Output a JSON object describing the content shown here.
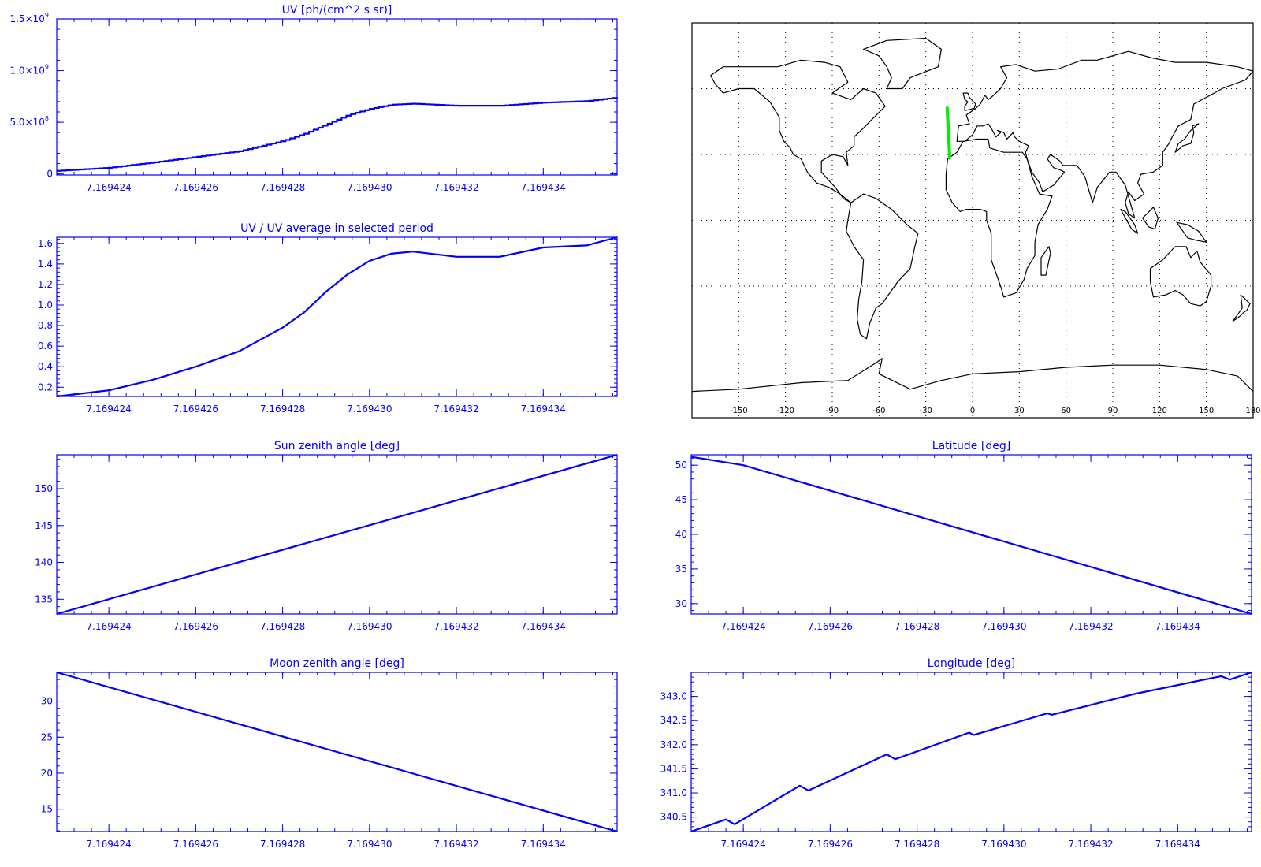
{
  "colors": {
    "axis": "#0000ff",
    "line": "#0000ff",
    "map": "#000000",
    "track": "#00ee00",
    "grid": "#000000"
  },
  "chart_data": [
    {
      "id": "uv",
      "type": "line",
      "title": "UV [ph/(cm^2 s sr)]",
      "xlabel": "",
      "ylabel": "",
      "xlim": [
        7.1694228,
        7.1694357
      ],
      "ylim": [
        -10000000,
        1500000000
      ],
      "xticks": [
        "7.169424",
        "7.169426",
        "7.169428",
        "7.169430",
        "7.169432",
        "7.169434"
      ],
      "xtick_values": [
        7.169424,
        7.169426,
        7.169428,
        7.16943,
        7.169432,
        7.169434
      ],
      "yticks": [
        {
          "value": 0,
          "label": "0"
        },
        {
          "value": 500000000,
          "label": "5.0×10",
          "exp": "8"
        },
        {
          "value": 1000000000,
          "label": "1.0×10",
          "exp": "9"
        },
        {
          "value": 1500000000,
          "label": "1.5×10",
          "exp": "9"
        }
      ],
      "step": true,
      "x": [
        7.1694228,
        7.169424,
        7.169425,
        7.169426,
        7.169427,
        7.169428,
        7.1694285,
        7.169429,
        7.1694295,
        7.16943,
        7.1694305,
        7.169431,
        7.169432,
        7.169433,
        7.169434,
        7.169435,
        7.1694357
      ],
      "values": [
        30000000,
        60000000,
        110000000,
        165000000,
        220000000,
        320000000,
        390000000,
        480000000,
        570000000,
        630000000,
        670000000,
        680000000,
        660000000,
        660000000,
        690000000,
        705000000,
        740000000
      ]
    },
    {
      "id": "uv_ratio",
      "type": "line",
      "title": "UV / UV average in selected period",
      "xlabel": "",
      "ylabel": "",
      "xlim": [
        7.1694228,
        7.1694357
      ],
      "ylim": [
        0.11,
        1.66
      ],
      "xticks": [
        "7.169424",
        "7.169426",
        "7.169428",
        "7.169430",
        "7.169432",
        "7.169434"
      ],
      "xtick_values": [
        7.169424,
        7.169426,
        7.169428,
        7.16943,
        7.169432,
        7.169434
      ],
      "yticks": [
        {
          "value": 0.2,
          "label": "0.2"
        },
        {
          "value": 0.4,
          "label": "0.4"
        },
        {
          "value": 0.6,
          "label": "0.6"
        },
        {
          "value": 0.8,
          "label": "0.8"
        },
        {
          "value": 1.0,
          "label": "1.0"
        },
        {
          "value": 1.2,
          "label": "1.2"
        },
        {
          "value": 1.4,
          "label": "1.4"
        },
        {
          "value": 1.6,
          "label": "1.6"
        }
      ],
      "x": [
        7.1694228,
        7.169424,
        7.169425,
        7.169426,
        7.169427,
        7.169428,
        7.1694285,
        7.169429,
        7.1694295,
        7.16943,
        7.1694305,
        7.169431,
        7.169432,
        7.169433,
        7.169434,
        7.169435,
        7.1694357
      ],
      "values": [
        0.11,
        0.17,
        0.27,
        0.4,
        0.55,
        0.78,
        0.93,
        1.13,
        1.3,
        1.43,
        1.5,
        1.52,
        1.47,
        1.47,
        1.56,
        1.58,
        1.66
      ]
    },
    {
      "id": "sun_zenith",
      "type": "line",
      "title": "Sun zenith angle [deg]",
      "xlabel": "",
      "ylabel": "",
      "xlim": [
        7.1694228,
        7.1694357
      ],
      "ylim": [
        133.0,
        154.6
      ],
      "xticks": [
        "7.169424",
        "7.169426",
        "7.169428",
        "7.169430",
        "7.169432",
        "7.169434"
      ],
      "xtick_values": [
        7.169424,
        7.169426,
        7.169428,
        7.16943,
        7.169432,
        7.169434
      ],
      "yticks": [
        {
          "value": 135,
          "label": "135"
        },
        {
          "value": 140,
          "label": "140"
        },
        {
          "value": 145,
          "label": "145"
        },
        {
          "value": 150,
          "label": "150"
        }
      ],
      "x": [
        7.1694228,
        7.1694357
      ],
      "values": [
        133.0,
        154.6
      ]
    },
    {
      "id": "latitude",
      "type": "line",
      "title": "Latitude [deg]",
      "xlabel": "",
      "ylabel": "",
      "xlim": [
        7.1694228,
        7.1694357
      ],
      "ylim": [
        28.5,
        51.5
      ],
      "xticks": [
        "7.169424",
        "7.169426",
        "7.169428",
        "7.169430",
        "7.169432",
        "7.169434"
      ],
      "xtick_values": [
        7.169424,
        7.169426,
        7.169428,
        7.16943,
        7.169432,
        7.169434
      ],
      "yticks": [
        {
          "value": 30,
          "label": "30"
        },
        {
          "value": 35,
          "label": "35"
        },
        {
          "value": 40,
          "label": "40"
        },
        {
          "value": 45,
          "label": "45"
        },
        {
          "value": 50,
          "label": "50"
        }
      ],
      "x": [
        7.1694228,
        7.169424,
        7.1694357
      ],
      "values": [
        51.2,
        50.0,
        28.5
      ]
    },
    {
      "id": "moon_zenith",
      "type": "line",
      "title": "Moon zenith angle [deg]",
      "xlabel": "",
      "ylabel": "",
      "xlim": [
        7.1694228,
        7.1694357
      ],
      "ylim": [
        11.9,
        34.0
      ],
      "xticks": [
        "7.169424",
        "7.169426",
        "7.169428",
        "7.169430",
        "7.169432",
        "7.169434"
      ],
      "xtick_values": [
        7.169424,
        7.169426,
        7.169428,
        7.16943,
        7.169432,
        7.169434
      ],
      "yticks": [
        {
          "value": 15,
          "label": "15"
        },
        {
          "value": 20,
          "label": "20"
        },
        {
          "value": 25,
          "label": "25"
        },
        {
          "value": 30,
          "label": "30"
        }
      ],
      "x": [
        7.1694228,
        7.1694357
      ],
      "values": [
        34.0,
        11.9
      ]
    },
    {
      "id": "longitude",
      "type": "line",
      "title": "Longitude [deg]",
      "xlabel": "",
      "ylabel": "",
      "xlim": [
        7.1694228,
        7.1694357
      ],
      "ylim": [
        340.2,
        343.5
      ],
      "xticks": [
        "7.169424",
        "7.169426",
        "7.169428",
        "7.169430",
        "7.169432",
        "7.169434"
      ],
      "xtick_values": [
        7.169424,
        7.169426,
        7.169428,
        7.16943,
        7.169432,
        7.169434
      ],
      "yticks": [
        {
          "value": 340.5,
          "label": "340.5"
        },
        {
          "value": 341.0,
          "label": "341.0"
        },
        {
          "value": 341.5,
          "label": "341.5"
        },
        {
          "value": 342.0,
          "label": "342.0"
        },
        {
          "value": 342.5,
          "label": "342.5"
        },
        {
          "value": 343.0,
          "label": "343.0"
        }
      ],
      "x": [
        7.1694228,
        7.1694236,
        7.1694238,
        7.1694253,
        7.1694255,
        7.1694273,
        7.1694275,
        7.1694292,
        7.1694293,
        7.169431,
        7.1694311,
        7.169433,
        7.169435,
        7.1694352,
        7.1694357
      ],
      "values": [
        340.2,
        340.45,
        340.35,
        341.15,
        341.05,
        341.8,
        341.7,
        342.25,
        342.2,
        342.65,
        342.62,
        343.05,
        343.42,
        343.35,
        343.5
      ]
    },
    {
      "id": "track_map",
      "type": "scatter",
      "title": "",
      "xlabel": "",
      "ylabel": "",
      "xlim": [
        -180,
        180
      ],
      "ylim": [
        -90,
        90
      ],
      "xticks": [
        "-150",
        "-120",
        "-90",
        "-60",
        "-30",
        "0",
        "30",
        "60",
        "90",
        "120",
        "150",
        "180"
      ],
      "xtick_values": [
        -150,
        -120,
        -90,
        -60,
        -30,
        0,
        30,
        60,
        90,
        120,
        150,
        180
      ],
      "grid": true,
      "track": {
        "lon": [
          -16.3,
          -14.6
        ],
        "lat": [
          51.2,
          28.5
        ]
      }
    }
  ]
}
